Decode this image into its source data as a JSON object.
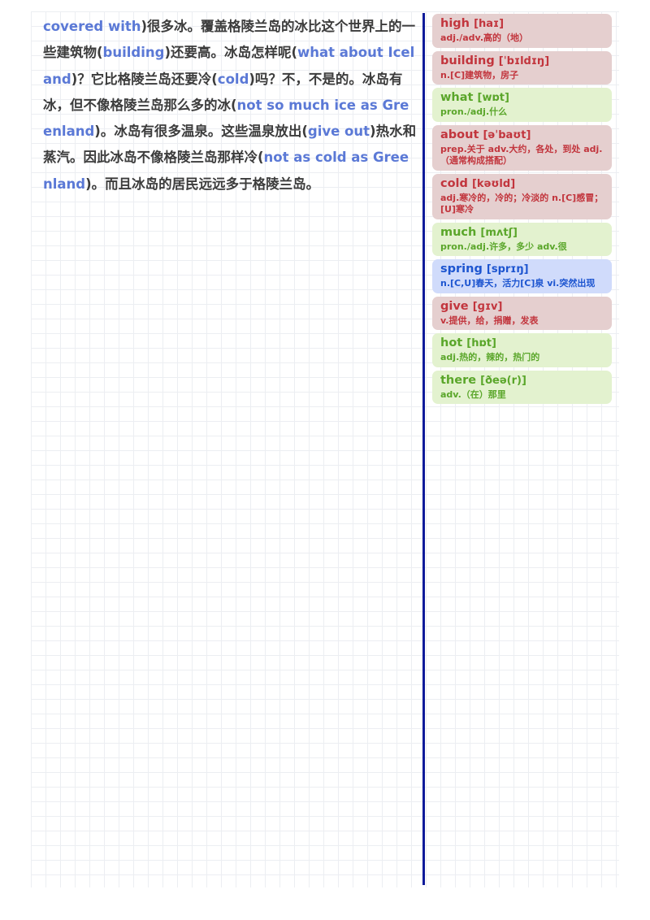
{
  "passage": [
    {
      "t": "en",
      "s": "covered with"
    },
    {
      "t": "zh",
      "s": ")很多冰。覆盖格陵兰岛的冰比这个世界上的一些建筑物("
    },
    {
      "t": "en",
      "s": "building"
    },
    {
      "t": "zh",
      "s": ")还要高。冰岛怎样呢("
    },
    {
      "t": "en",
      "s": "what about Iceland"
    },
    {
      "t": "zh",
      "s": ")？它比格陵兰岛还要冷("
    },
    {
      "t": "en",
      "s": "cold"
    },
    {
      "t": "zh",
      "s": ")吗？不，不是的。冰岛有冰，但不像格陵兰岛那么多的冰("
    },
    {
      "t": "en",
      "s": "not so much ice as Greenland"
    },
    {
      "t": "zh",
      "s": ")。冰岛有很多温泉。这些温泉放出("
    },
    {
      "t": "en",
      "s": "give out"
    },
    {
      "t": "zh",
      "s": ")热水和蒸汽。因此冰岛不像格陵兰岛那样冷("
    },
    {
      "t": "en",
      "s": "not as cold as Greenland"
    },
    {
      "t": "zh",
      "s": ")。而且冰岛的居民远远多于格陵兰岛。"
    }
  ],
  "vocab": [
    {
      "word": "high",
      "phonetic": "[haɪ]",
      "definition": "adj./adv.高的（地）",
      "color": "red"
    },
    {
      "word": "building",
      "phonetic": "[ˈbɪldɪŋ]",
      "definition": "n.[C]建筑物，房子",
      "color": "red"
    },
    {
      "word": "what",
      "phonetic": "[wɒt]",
      "definition": "pron./adj.什么",
      "color": "green"
    },
    {
      "word": "about",
      "phonetic": "[əˈbaʊt]",
      "definition": "prep.关于 adv.大约，各处，到处 adj.（通常构成搭配）",
      "color": "red"
    },
    {
      "word": "cold",
      "phonetic": "[kəʊld]",
      "definition": "adj.寒冷的，冷的；冷淡的 n.[C]感冒；[U]寒冷",
      "color": "red"
    },
    {
      "word": "much",
      "phonetic": "[mʌtʃ]",
      "definition": "pron./adj.许多，多少 adv.很",
      "color": "green"
    },
    {
      "word": "spring",
      "phonetic": "[sprɪŋ]",
      "definition": "n.[C,U]春天，活力[C]泉 vi.突然出现",
      "color": "blue"
    },
    {
      "word": "give",
      "phonetic": "[ɡɪv]",
      "definition": "v.提供，给，捐赠，发表",
      "color": "red"
    },
    {
      "word": "hot",
      "phonetic": "[hɒt]",
      "definition": "adj.热的，辣的，热门的",
      "color": "green"
    },
    {
      "word": "there",
      "phonetic": "[ðeə(r)]",
      "definition": "adv.（在）那里",
      "color": "green"
    }
  ]
}
